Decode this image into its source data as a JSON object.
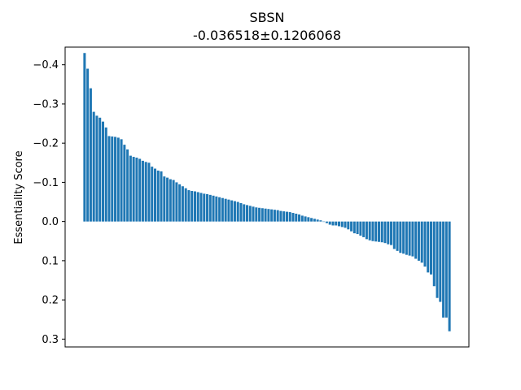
{
  "chart_data": {
    "type": "bar",
    "title": "SBSN",
    "subtitle": "-0.036518±0.1206068",
    "xlabel": "",
    "ylabel": "Essentiality Score",
    "ylim": [
      -0.445,
      0.32
    ],
    "y_inverted": true,
    "yticks": [
      -0.4,
      -0.3,
      -0.2,
      -0.1,
      0.0,
      0.1,
      0.2,
      0.3
    ],
    "ytick_labels": [
      "−0.4",
      "−0.3",
      "−0.2",
      "−0.1",
      "0.0",
      "0.1",
      "0.2",
      "0.3"
    ],
    "grid": false,
    "bar_color": "#1f77b4",
    "values": [
      -0.43,
      -0.39,
      -0.34,
      -0.28,
      -0.27,
      -0.265,
      -0.255,
      -0.24,
      -0.218,
      -0.217,
      -0.216,
      -0.214,
      -0.21,
      -0.196,
      -0.184,
      -0.168,
      -0.165,
      -0.163,
      -0.16,
      -0.155,
      -0.152,
      -0.15,
      -0.14,
      -0.135,
      -0.13,
      -0.128,
      -0.115,
      -0.112,
      -0.108,
      -0.106,
      -0.1,
      -0.095,
      -0.09,
      -0.085,
      -0.08,
      -0.078,
      -0.077,
      -0.075,
      -0.073,
      -0.071,
      -0.07,
      -0.068,
      -0.066,
      -0.064,
      -0.062,
      -0.06,
      -0.058,
      -0.056,
      -0.054,
      -0.052,
      -0.05,
      -0.047,
      -0.044,
      -0.042,
      -0.04,
      -0.038,
      -0.036,
      -0.035,
      -0.034,
      -0.033,
      -0.032,
      -0.031,
      -0.03,
      -0.029,
      -0.027,
      -0.026,
      -0.025,
      -0.024,
      -0.022,
      -0.02,
      -0.018,
      -0.015,
      -0.013,
      -0.011,
      -0.009,
      -0.007,
      -0.005,
      -0.003,
      0.001,
      0.004,
      0.008,
      0.01,
      0.01,
      0.012,
      0.014,
      0.016,
      0.02,
      0.025,
      0.03,
      0.032,
      0.036,
      0.04,
      0.045,
      0.048,
      0.05,
      0.051,
      0.052,
      0.053,
      0.055,
      0.058,
      0.06,
      0.07,
      0.075,
      0.08,
      0.082,
      0.085,
      0.087,
      0.089,
      0.095,
      0.1,
      0.105,
      0.115,
      0.13,
      0.135,
      0.165,
      0.195,
      0.205,
      0.245,
      0.245,
      0.28
    ]
  }
}
